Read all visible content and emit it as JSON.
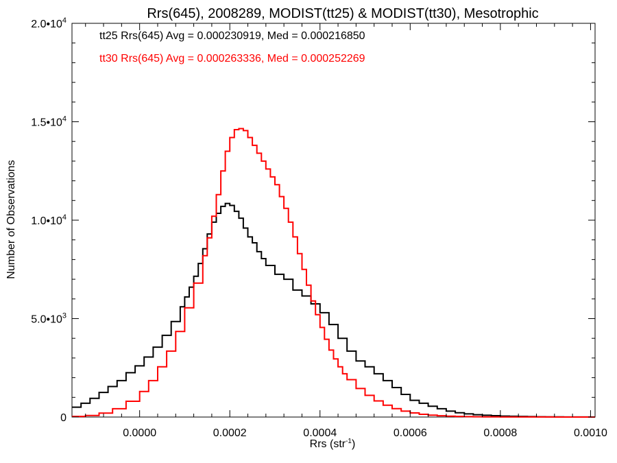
{
  "chart_data": {
    "type": "line",
    "title": "Rrs(645), 2008289, MODIST(tt25) & MODIST(tt30), Mesotrophic",
    "xlabel": "Rrs (str",
    "xlabel_sup": "-1",
    "xlabel_close": ")",
    "ylabel": "Number of Observations",
    "xlim": [
      -0.00015,
      0.00101
    ],
    "ylim": [
      0,
      20000
    ],
    "x_ticks": [
      {
        "value": 0.0,
        "label": "0.0000"
      },
      {
        "value": 0.0002,
        "label": "0.0002"
      },
      {
        "value": 0.0004,
        "label": "0.0004"
      },
      {
        "value": 0.0006,
        "label": "0.0006"
      },
      {
        "value": 0.0008,
        "label": "0.0008"
      },
      {
        "value": 0.001,
        "label": "0.0010"
      }
    ],
    "y_ticks": [
      {
        "value": 0,
        "mant": "0",
        "exp": ""
      },
      {
        "value": 5000,
        "mant": "5.0•10",
        "exp": "3"
      },
      {
        "value": 10000,
        "mant": "1.0•10",
        "exp": "4"
      },
      {
        "value": 15000,
        "mant": "1.5•10",
        "exp": "4"
      },
      {
        "value": 20000,
        "mant": "2.0•10",
        "exp": "4"
      }
    ],
    "annotations": [
      {
        "text": "tt25 Rrs(645) Avg = 0.000230919, Med = 0.000216850",
        "color": "#000000"
      },
      {
        "text": "tt30 Rrs(645) Avg = 0.000263336, Med = 0.000252269",
        "color": "#ff0000"
      }
    ],
    "series": [
      {
        "color": "#000000",
        "x": [
          -0.00015,
          -0.00013,
          -0.00011,
          -9e-05,
          -7e-05,
          -5e-05,
          -3e-05,
          -1e-05,
          1e-05,
          3e-05,
          5e-05,
          7e-05,
          9e-05,
          0.0001,
          0.00011,
          0.00012,
          0.00013,
          0.00014,
          0.00015,
          0.00016,
          0.00017,
          0.00018,
          0.00019,
          0.0002,
          0.00021,
          0.00022,
          0.00023,
          0.00024,
          0.00025,
          0.00026,
          0.00027,
          0.00028,
          0.0003,
          0.00032,
          0.00034,
          0.00036,
          0.00038,
          0.0004,
          0.00042,
          0.00044,
          0.00046,
          0.00048,
          0.0005,
          0.00052,
          0.00054,
          0.00056,
          0.00058,
          0.0006,
          0.00062,
          0.00064,
          0.00066,
          0.00068,
          0.0007,
          0.00072,
          0.00074,
          0.00076,
          0.00078,
          0.0008,
          0.00082,
          0.00084,
          0.00086,
          0.00088,
          0.0009,
          0.00092,
          0.00094,
          0.00096,
          0.00098,
          0.001
        ],
        "y": [
          500,
          700,
          950,
          1250,
          1550,
          1850,
          2250,
          2600,
          3050,
          3550,
          4150,
          4850,
          5600,
          6100,
          6600,
          7150,
          7800,
          8550,
          9300,
          9900,
          10350,
          10700,
          10850,
          10750,
          10450,
          10100,
          9600,
          9150,
          8850,
          8400,
          8050,
          7700,
          7250,
          7000,
          6450,
          6150,
          5750,
          5300,
          4700,
          4000,
          3350,
          2850,
          2550,
          2200,
          1850,
          1500,
          1150,
          850,
          700,
          550,
          420,
          300,
          220,
          160,
          120,
          90,
          70,
          50,
          40,
          30,
          20,
          15,
          10,
          8,
          5,
          3,
          2,
          1
        ]
      },
      {
        "color": "#ff0000",
        "x": [
          -0.00015,
          -0.00012,
          -9e-05,
          -6e-05,
          -3e-05,
          0.0,
          2e-05,
          4e-05,
          6e-05,
          8e-05,
          0.0001,
          0.00012,
          0.00014,
          0.00015,
          0.00016,
          0.00017,
          0.00018,
          0.00019,
          0.0002,
          0.00021,
          0.00022,
          0.00023,
          0.00024,
          0.00025,
          0.00026,
          0.00027,
          0.00028,
          0.00029,
          0.0003,
          0.00031,
          0.00032,
          0.00033,
          0.00034,
          0.00035,
          0.00036,
          0.00037,
          0.00038,
          0.00039,
          0.0004,
          0.00041,
          0.00042,
          0.00043,
          0.00044,
          0.00045,
          0.00046,
          0.00048,
          0.0005,
          0.00052,
          0.00054,
          0.00056,
          0.00058,
          0.0006,
          0.00062,
          0.00064,
          0.00066,
          0.00068,
          0.0007,
          0.00072,
          0.00074,
          0.00076,
          0.00078,
          0.0008,
          0.00084,
          0.00088,
          0.00092,
          0.00096,
          0.001
        ],
        "y": [
          30,
          80,
          200,
          420,
          800,
          1300,
          1850,
          2550,
          3350,
          4350,
          5550,
          6800,
          8200,
          9100,
          10200,
          11300,
          12500,
          13500,
          14200,
          14600,
          14650,
          14550,
          14200,
          13800,
          13400,
          13000,
          12600,
          12200,
          11800,
          11200,
          10600,
          9900,
          9150,
          8300,
          7500,
          6700,
          5900,
          5200,
          4550,
          3950,
          3400,
          2950,
          2550,
          2200,
          1900,
          1450,
          1100,
          820,
          600,
          430,
          300,
          210,
          140,
          95,
          65,
          45,
          30,
          20,
          14,
          10,
          7,
          5,
          3,
          2,
          1,
          1,
          0
        ]
      }
    ]
  }
}
